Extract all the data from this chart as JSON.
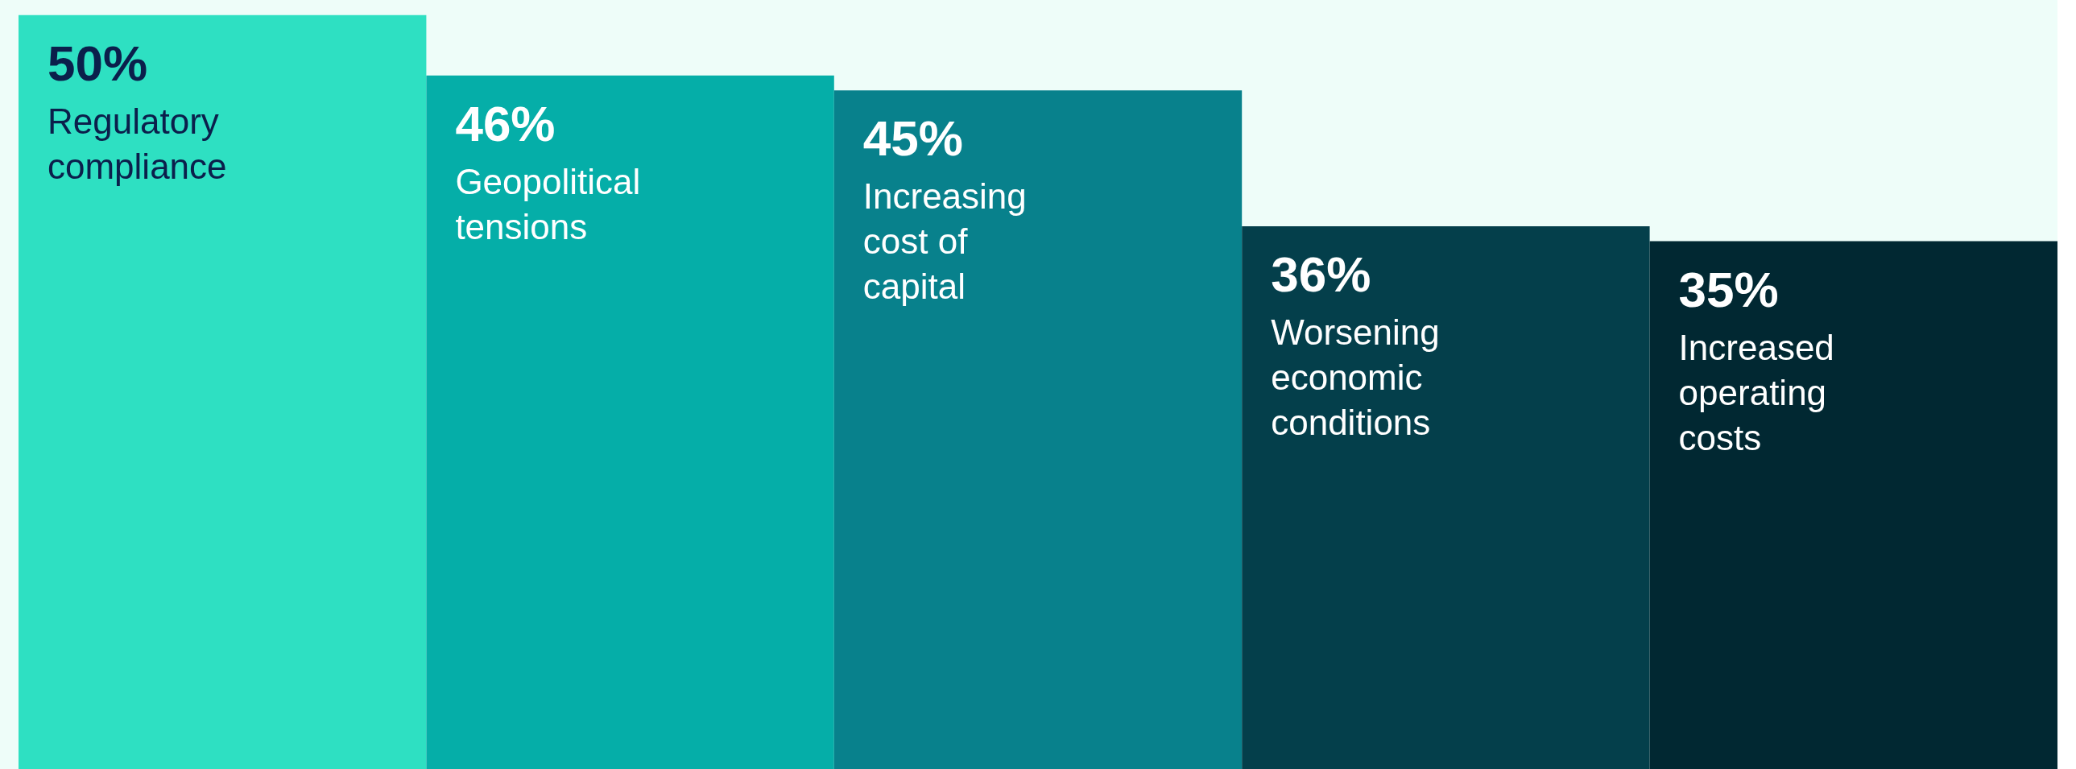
{
  "chart_data": {
    "type": "bar",
    "categories": [
      "Regulatory compliance",
      "Geopolitical tensions",
      "Increasing cost of capital",
      "Worsening economic conditions",
      "Increased operating costs"
    ],
    "values": [
      50,
      46,
      45,
      36,
      35
    ],
    "colors": [
      "#2ee0c2",
      "#05aea8",
      "#08818c",
      "#043f4b",
      "#012832"
    ],
    "value_labels": [
      "50%",
      "46%",
      "45%",
      "36%",
      "35%"
    ],
    "ylim": [
      0,
      51
    ],
    "tick_labels": false
  }
}
